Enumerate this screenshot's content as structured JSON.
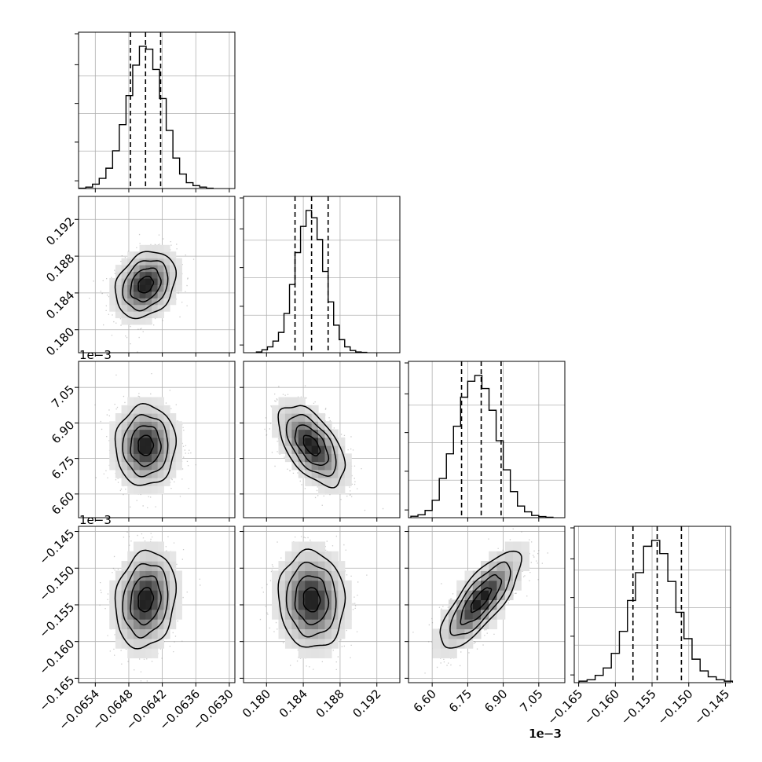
{
  "chart_data": {
    "type": "corner",
    "params": 4,
    "grid": true,
    "colors": {
      "line": "#000000",
      "grid": "#b0b0b0",
      "points": "#8c8c8c"
    },
    "axes": [
      {
        "range": [
          -0.0657,
          -0.0629
        ],
        "ticks": [
          -0.0654,
          -0.0648,
          -0.0642,
          -0.0636,
          -0.063
        ],
        "tick_labels": [
          "−0.0654",
          "−0.0648",
          "−0.0642",
          "−0.0636",
          "−0.0630"
        ],
        "offset": ""
      },
      {
        "range": [
          0.1775,
          0.1945
        ],
        "ticks": [
          0.18,
          0.184,
          0.188,
          0.192
        ],
        "tick_labels": [
          "0.180",
          "0.184",
          "0.188",
          "0.192"
        ],
        "offset": ""
      },
      {
        "range": [
          6.5,
          7.16
        ],
        "ticks": [
          6.6,
          6.75,
          6.9,
          7.05
        ],
        "tick_labels": [
          "6.60",
          "6.75",
          "6.90",
          "7.05"
        ],
        "offset": "1e−3"
      },
      {
        "range": [
          -0.1656,
          -0.1443
        ],
        "ticks": [
          -0.165,
          -0.16,
          -0.155,
          -0.15,
          -0.145
        ],
        "tick_labels": [
          "−0.165",
          "−0.160",
          "−0.155",
          "−0.150",
          "−0.145"
        ],
        "offset": "1e−3"
      }
    ],
    "histograms": [
      {
        "param": 0,
        "bin_centers": [
          -0.06563,
          -0.06551,
          -0.06539,
          -0.06527,
          -0.06515,
          -0.06503,
          -0.06491,
          -0.06479,
          -0.06467,
          -0.06455,
          -0.06443,
          -0.06431,
          -0.06419,
          -0.06407,
          -0.06395,
          -0.06383,
          -0.06371,
          -0.06359,
          -0.06347,
          -0.06335
        ],
        "counts": [
          0.002,
          0.01,
          0.03,
          0.07,
          0.14,
          0.26,
          0.44,
          0.64,
          0.85,
          0.98,
          0.96,
          0.82,
          0.62,
          0.4,
          0.21,
          0.1,
          0.04,
          0.02,
          0.01,
          0.002
        ],
        "quantiles": [
          -0.06477,
          -0.0645,
          -0.06423
        ]
      },
      {
        "param": 1,
        "bin_centers": [
          0.1792,
          0.1798,
          0.1804,
          0.181,
          0.1816,
          0.1822,
          0.1828,
          0.1834,
          0.184,
          0.1846,
          0.1852,
          0.1858,
          0.1864,
          0.187,
          0.1876,
          0.1882,
          0.1888,
          0.1894,
          0.19,
          0.1906
        ],
        "counts": [
          0.005,
          0.02,
          0.04,
          0.08,
          0.14,
          0.27,
          0.47,
          0.69,
          0.87,
          0.98,
          0.93,
          0.78,
          0.56,
          0.35,
          0.19,
          0.09,
          0.04,
          0.015,
          0.005,
          0.002
        ],
        "quantiles": [
          0.1831,
          0.1849,
          0.1867
        ]
      },
      {
        "param": 2,
        "bin_centers": [
          6.525,
          6.555,
          6.585,
          6.615,
          6.645,
          6.675,
          6.705,
          6.735,
          6.765,
          6.795,
          6.825,
          6.855,
          6.885,
          6.915,
          6.945,
          6.975,
          7.005,
          7.035,
          7.065,
          7.095
        ],
        "counts": [
          0.01,
          0.02,
          0.05,
          0.12,
          0.27,
          0.44,
          0.63,
          0.83,
          0.94,
          0.98,
          0.89,
          0.74,
          0.53,
          0.33,
          0.18,
          0.08,
          0.04,
          0.015,
          0.008,
          0.003
        ],
        "quantiles": [
          6.724,
          6.807,
          6.891
        ]
      },
      {
        "param": 3,
        "bin_centers": [
          -0.1644,
          -0.1633,
          -0.1622,
          -0.1611,
          -0.16,
          -0.1589,
          -0.1578,
          -0.1567,
          -0.1556,
          -0.1545,
          -0.1534,
          -0.1523,
          -0.1512,
          -0.1501,
          -0.149,
          -0.1479,
          -0.1468,
          -0.1457,
          -0.1446
        ],
        "counts": [
          0.01,
          0.02,
          0.05,
          0.1,
          0.2,
          0.35,
          0.56,
          0.75,
          0.93,
          0.97,
          0.88,
          0.69,
          0.48,
          0.3,
          0.16,
          0.08,
          0.04,
          0.02,
          0.01
        ],
        "quantiles": [
          -0.1576,
          -0.1543,
          -0.151
        ]
      }
    ],
    "pairs": [
      {
        "x": 0,
        "y": 1,
        "mean": [
          -0.0645,
          0.1849
        ],
        "std": [
          0.00027,
          0.0018
        ],
        "corr": 0.25
      },
      {
        "x": 0,
        "y": 2,
        "mean": [
          -0.0645,
          6.805
        ],
        "std": [
          0.00027,
          0.085
        ],
        "corr": 0.02
      },
      {
        "x": 1,
        "y": 2,
        "mean": [
          0.1849,
          6.805
        ],
        "std": [
          0.0018,
          0.085
        ],
        "corr": -0.55
      },
      {
        "x": 0,
        "y": 3,
        "mean": [
          -0.0645,
          -0.1543
        ],
        "std": [
          0.00027,
          0.0033
        ],
        "corr": 0.15
      },
      {
        "x": 1,
        "y": 3,
        "mean": [
          0.1849,
          -0.1543
        ],
        "std": [
          0.0018,
          0.0033
        ],
        "corr": -0.05
      },
      {
        "x": 2,
        "y": 3,
        "mean": [
          6.805,
          -0.1543
        ],
        "std": [
          0.085,
          0.0033
        ],
        "corr": 0.78
      }
    ]
  }
}
